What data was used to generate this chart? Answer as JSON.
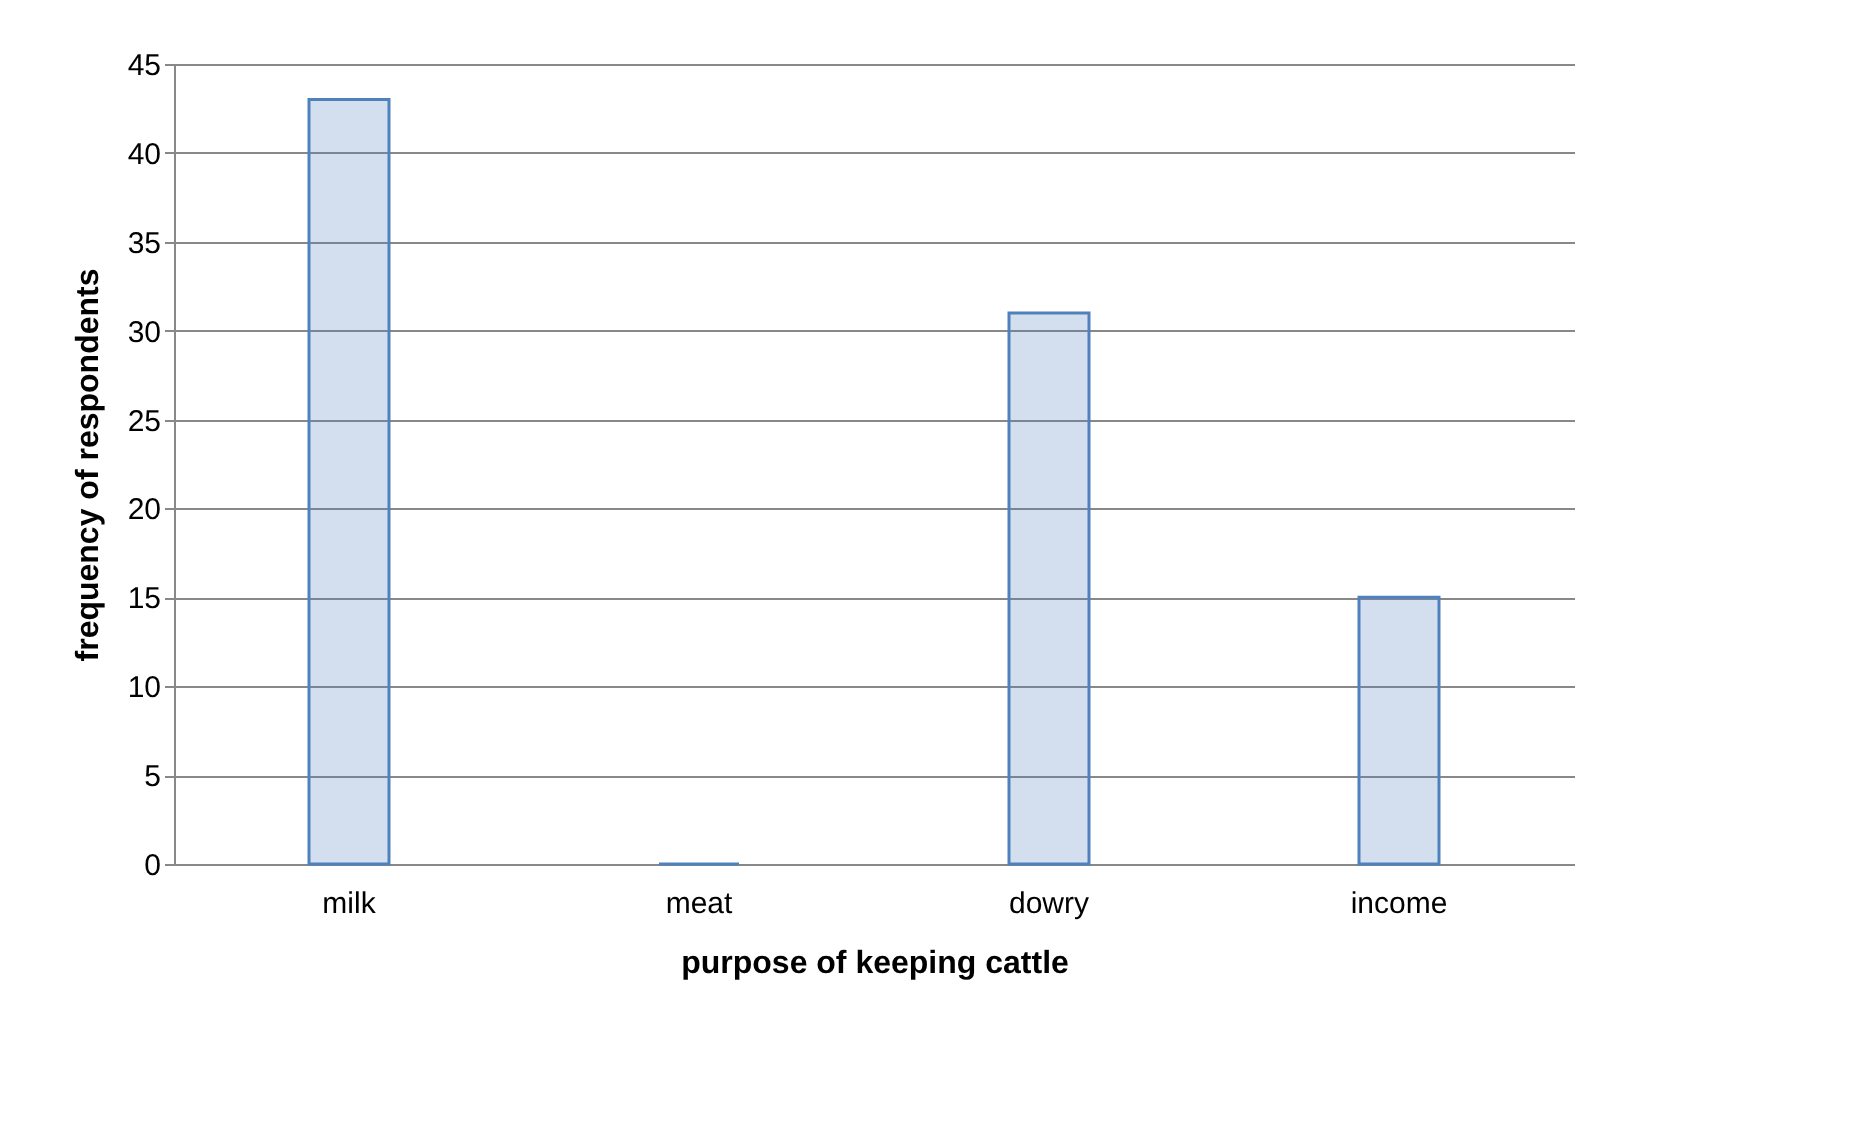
{
  "chart_data": {
    "type": "bar",
    "xlabel": "purpose of keeping cattle",
    "ylabel": "frequency of respondents",
    "categories": [
      "milk",
      "meat",
      "dowry",
      "income"
    ],
    "values": [
      43,
      0,
      31,
      15
    ],
    "color": "#4f81bd",
    "ylim": [
      0,
      45
    ],
    "yticks": [
      0,
      5,
      10,
      15,
      20,
      25,
      30,
      35,
      40,
      45
    ],
    "grid": "y"
  }
}
